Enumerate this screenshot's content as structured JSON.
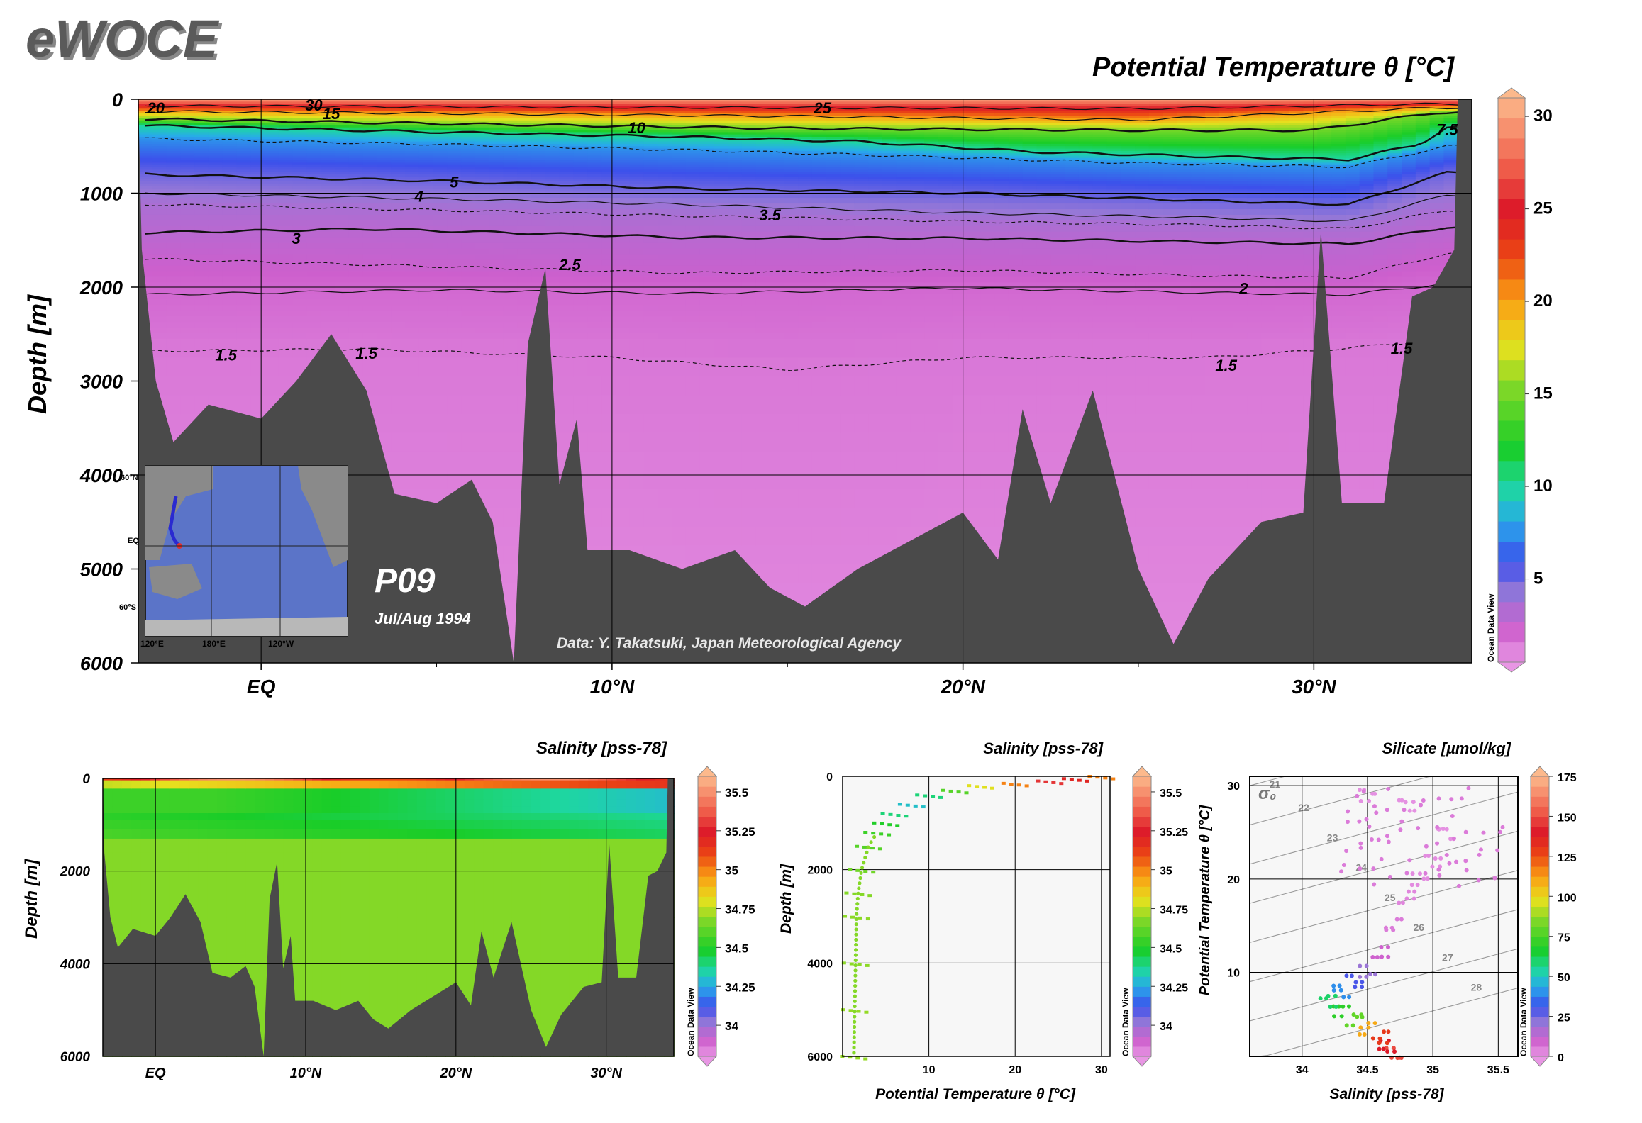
{
  "logo": "eWOCE",
  "watermark": "Ocean Data View",
  "section": {
    "name": "P09",
    "dates": "Jul/Aug 1994",
    "credit": "Data: Y. Takatsuki, Japan Meteorological Agency"
  },
  "inset_map": {
    "lat_labels": [
      "60°N",
      "EQ",
      "60°S"
    ],
    "lon_labels": [
      "120°E",
      "180°E",
      "120°W"
    ]
  },
  "chart_data": [
    {
      "id": "main-theta-section",
      "type": "heatmap",
      "title": "Potential Temperature θ [°C]",
      "ylabel": "Depth [m]",
      "xlabel": "",
      "x_ticks": [
        "EQ",
        "10°N",
        "20°N",
        "30°N"
      ],
      "x_tick_values": [
        0,
        10,
        20,
        30
      ],
      "xlim": [
        -3.5,
        34.5
      ],
      "y_ticks": [
        0,
        1000,
        2000,
        3000,
        4000,
        5000,
        6000
      ],
      "ylim": [
        0,
        6000
      ],
      "grid": true,
      "colorbar": {
        "variable": "Potential Temperature θ [°C]",
        "ticks": [
          5,
          10,
          15,
          20,
          25,
          30
        ],
        "range": [
          0.5,
          31
        ]
      },
      "isotherm_labels": [
        "30",
        "25",
        "20",
        "15",
        "10",
        "7.5",
        "5",
        "4",
        "3.5",
        "3",
        "2.5",
        "2",
        "1.5",
        "1.5",
        "1.5",
        "1.5"
      ],
      "isotherms": [
        {
          "value": 25,
          "depths": [
            [
              -3.3,
              70
            ],
            [
              5,
              80
            ],
            [
              15,
              90
            ],
            [
              25,
              100
            ],
            [
              33.5,
              50
            ]
          ]
        },
        {
          "value": 20,
          "depths": [
            [
              -3.3,
              130
            ],
            [
              5,
              150
            ],
            [
              15,
              180
            ],
            [
              25,
              220
            ],
            [
              33.5,
              90
            ]
          ]
        },
        {
          "value": 15,
          "depths": [
            [
              -3.3,
              210
            ],
            [
              5,
              260
            ],
            [
              15,
              310
            ],
            [
              25,
              330
            ],
            [
              30,
              330
            ],
            [
              33.5,
              140
            ]
          ]
        },
        {
          "value": 10,
          "depths": [
            [
              -3.3,
              280
            ],
            [
              5,
              350
            ],
            [
              12,
              400
            ],
            [
              17,
              450
            ],
            [
              22,
              560
            ],
            [
              28,
              620
            ],
            [
              31,
              640
            ],
            [
              33,
              480
            ],
            [
              33.8,
              300
            ]
          ]
        },
        {
          "value": 7.5,
          "depths": [
            [
              -3.3,
              420
            ],
            [
              5,
              480
            ],
            [
              12,
              540
            ],
            [
              18,
              600
            ],
            [
              25,
              680
            ],
            [
              31,
              720
            ],
            [
              33.8,
              500
            ]
          ]
        },
        {
          "value": 5,
          "depths": [
            [
              -3.3,
              800
            ],
            [
              5,
              870
            ],
            [
              12,
              950
            ],
            [
              20,
              1000
            ],
            [
              27,
              1080
            ],
            [
              31,
              1120
            ],
            [
              33.8,
              780
            ]
          ]
        },
        {
          "value": 4,
          "depths": [
            [
              -3.3,
              1000
            ],
            [
              5,
              1060
            ],
            [
              12,
              1120
            ],
            [
              20,
              1210
            ],
            [
              27,
              1260
            ],
            [
              31,
              1300
            ],
            [
              33.8,
              1020
            ]
          ]
        },
        {
          "value": 3.5,
          "depths": [
            [
              -3.3,
              1120
            ],
            [
              5,
              1180
            ],
            [
              12,
              1240
            ],
            [
              20,
              1300
            ],
            [
              27,
              1340
            ],
            [
              31,
              1380
            ],
            [
              33.8,
              1180
            ]
          ]
        },
        {
          "value": 3,
          "depths": [
            [
              -3.3,
              1420
            ],
            [
              3,
              1380
            ],
            [
              12,
              1470
            ],
            [
              20,
              1480
            ],
            [
              27,
              1520
            ],
            [
              31,
              1540
            ],
            [
              33.8,
              1360
            ]
          ]
        },
        {
          "value": 2.5,
          "depths": [
            [
              -3.3,
              1700
            ],
            [
              5,
              1780
            ],
            [
              12,
              1850
            ],
            [
              20,
              1820
            ],
            [
              27,
              1880
            ],
            [
              31,
              1900
            ],
            [
              33.8,
              1640
            ]
          ]
        },
        {
          "value": 2,
          "depths": [
            [
              -3.3,
              2080
            ],
            [
              5,
              2030
            ],
            [
              12,
              2070
            ],
            [
              20,
              2010
            ],
            [
              27,
              2060
            ],
            [
              31,
              2080
            ],
            [
              33.8,
              1960
            ]
          ]
        },
        {
          "value": 1.5,
          "depths": [
            [
              -3.3,
              2680
            ],
            [
              3,
              2660
            ],
            [
              10,
              2750
            ],
            [
              15,
              2880
            ],
            [
              20,
              2750
            ],
            [
              27,
              2750
            ],
            [
              31,
              2650
            ],
            [
              33.8,
              2550
            ]
          ]
        }
      ],
      "bottom_depth": [
        [
          -3.5,
          0
        ],
        [
          -3.4,
          1600
        ],
        [
          -3,
          3000
        ],
        [
          -2.5,
          3650
        ],
        [
          -1.5,
          3250
        ],
        [
          0,
          3400
        ],
        [
          1,
          3000
        ],
        [
          2,
          2500
        ],
        [
          3,
          3100
        ],
        [
          3.8,
          4200
        ],
        [
          5,
          4300
        ],
        [
          6,
          4050
        ],
        [
          6.6,
          4500
        ],
        [
          7.2,
          6000
        ],
        [
          7.6,
          2600
        ],
        [
          8.1,
          1800
        ],
        [
          8.5,
          4100
        ],
        [
          9,
          3400
        ],
        [
          9.3,
          4800
        ],
        [
          10.5,
          4800
        ],
        [
          12,
          5000
        ],
        [
          13.5,
          4800
        ],
        [
          14.5,
          5200
        ],
        [
          15.5,
          5400
        ],
        [
          17,
          5000
        ],
        [
          18.5,
          4700
        ],
        [
          20,
          4400
        ],
        [
          21,
          4900
        ],
        [
          21.7,
          3300
        ],
        [
          22.5,
          4300
        ],
        [
          23.7,
          3100
        ],
        [
          25,
          5000
        ],
        [
          26,
          5800
        ],
        [
          27,
          5100
        ],
        [
          28.5,
          4500
        ],
        [
          29.7,
          4400
        ],
        [
          30.2,
          1400
        ],
        [
          30.8,
          4300
        ],
        [
          32,
          4300
        ],
        [
          32.8,
          2100
        ],
        [
          33.4,
          2000
        ],
        [
          34,
          1600
        ],
        [
          34.1,
          0
        ]
      ]
    },
    {
      "id": "salinity-section",
      "type": "heatmap",
      "title": "Salinity [pss-78]",
      "ylabel": "Depth [m]",
      "xlabel": "",
      "x_ticks": [
        "EQ",
        "10°N",
        "20°N",
        "30°N"
      ],
      "x_tick_values": [
        0,
        10,
        20,
        30
      ],
      "xlim": [
        -3.5,
        34.5
      ],
      "y_ticks": [
        0,
        2000,
        4000,
        6000
      ],
      "ylim": [
        0,
        6000
      ],
      "grid": true,
      "colorbar": {
        "variable": "Salinity [pss-78]",
        "ticks": [
          "34",
          "34.25",
          "34.5",
          "34.75",
          "35",
          "35.25",
          "35.5"
        ],
        "range": [
          33.8,
          35.6
        ]
      }
    },
    {
      "id": "salinity-profile",
      "type": "scatter",
      "title": "Salinity [pss-78]",
      "xlabel": "Potential Temperature θ [°C]",
      "ylabel": "Depth [m]",
      "x_ticks": [
        10,
        20,
        30
      ],
      "xlim": [
        0,
        31
      ],
      "y_ticks": [
        0,
        2000,
        4000,
        6000
      ],
      "ylim": [
        6000,
        0
      ],
      "grid": true,
      "color_variable": "Salinity [pss-78]",
      "colorbar": {
        "ticks": [
          "34",
          "34.25",
          "34.5",
          "34.75",
          "35",
          "35.25",
          "35.5"
        ],
        "range": [
          33.8,
          35.6
        ]
      },
      "points_approx": [
        [
          30,
          0,
          35.0
        ],
        [
          27,
          50,
          35.2
        ],
        [
          24,
          100,
          35.3
        ],
        [
          20,
          150,
          35.0
        ],
        [
          16,
          200,
          34.8
        ],
        [
          13,
          300,
          34.6
        ],
        [
          10,
          400,
          34.4
        ],
        [
          8,
          600,
          34.3
        ],
        [
          6,
          800,
          34.4
        ],
        [
          5,
          1000,
          34.5
        ],
        [
          4,
          1200,
          34.55
        ],
        [
          3,
          1500,
          34.6
        ],
        [
          2.2,
          2000,
          34.65
        ],
        [
          1.8,
          2500,
          34.68
        ],
        [
          1.6,
          3000,
          34.69
        ],
        [
          1.5,
          4000,
          34.69
        ],
        [
          1.4,
          5000,
          34.7
        ],
        [
          1.3,
          6000,
          34.7
        ]
      ]
    },
    {
      "id": "ts-diagram",
      "type": "scatter",
      "title": "Silicate [µmol/kg]",
      "xlabel": "Salinity [pss-78]",
      "ylabel": "Potential Temperature θ [°C]",
      "x_ticks": [
        34,
        34.5,
        35,
        35.5
      ],
      "xlim": [
        33.6,
        35.65
      ],
      "y_ticks": [
        10,
        20,
        30
      ],
      "ylim": [
        1,
        31
      ],
      "grid": true,
      "sigma_label": "σ₀",
      "sigma_contours": [
        "21",
        "22",
        "23",
        "24",
        "25",
        "26",
        "27",
        "28"
      ],
      "color_variable": "Silicate [µmol/kg]",
      "colorbar": {
        "ticks": [
          0,
          25,
          50,
          75,
          100,
          125,
          150,
          175
        ],
        "range": [
          0,
          175
        ]
      },
      "points_approx": [
        [
          34.7,
          1.2,
          150
        ],
        [
          34.65,
          2.0,
          140
        ],
        [
          34.6,
          3.0,
          130
        ],
        [
          34.5,
          4.0,
          110
        ],
        [
          34.4,
          5.0,
          80
        ],
        [
          34.3,
          6.0,
          70
        ],
        [
          34.2,
          7.0,
          60
        ],
        [
          34.3,
          8.0,
          40
        ],
        [
          34.4,
          9.0,
          30
        ],
        [
          34.5,
          10.0,
          20
        ],
        [
          34.6,
          12.0,
          10
        ],
        [
          34.7,
          15.0,
          5
        ],
        [
          34.8,
          18.0,
          3
        ],
        [
          34.9,
          20.0,
          2
        ],
        [
          35.0,
          22.0,
          2
        ],
        [
          35.1,
          25.0,
          1
        ],
        [
          34.8,
          28.0,
          1
        ],
        [
          34.5,
          29.0,
          1
        ]
      ]
    }
  ]
}
